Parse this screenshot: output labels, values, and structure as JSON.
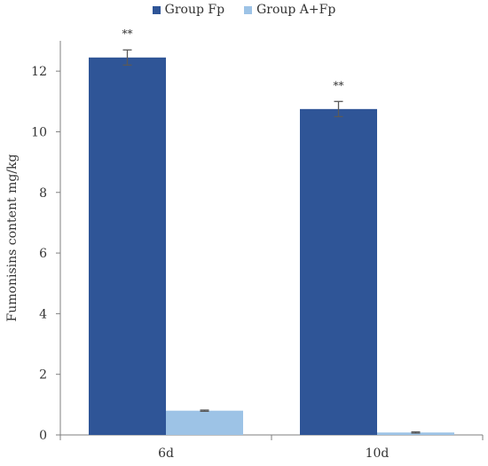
{
  "chart_data": {
    "type": "bar",
    "title": "",
    "xlabel": "",
    "ylabel": "Fumonisins content mg/kg",
    "categories": [
      "6d",
      "10d"
    ],
    "ylim": [
      0,
      13
    ],
    "yticks": [
      0,
      2,
      4,
      6,
      8,
      10,
      12
    ],
    "grid": false,
    "legend_position": "top-center",
    "series": [
      {
        "name": "Group Fp",
        "color": "#2f5597",
        "values": [
          12.45,
          10.75
        ],
        "errors": [
          0.25,
          0.25
        ],
        "annotations": [
          "**",
          "**"
        ]
      },
      {
        "name": "Group A+Fp",
        "color": "#9dc3e6",
        "values": [
          0.8,
          0.08
        ],
        "errors": [
          0.02,
          0.02
        ],
        "annotations": [
          "",
          ""
        ]
      }
    ]
  }
}
